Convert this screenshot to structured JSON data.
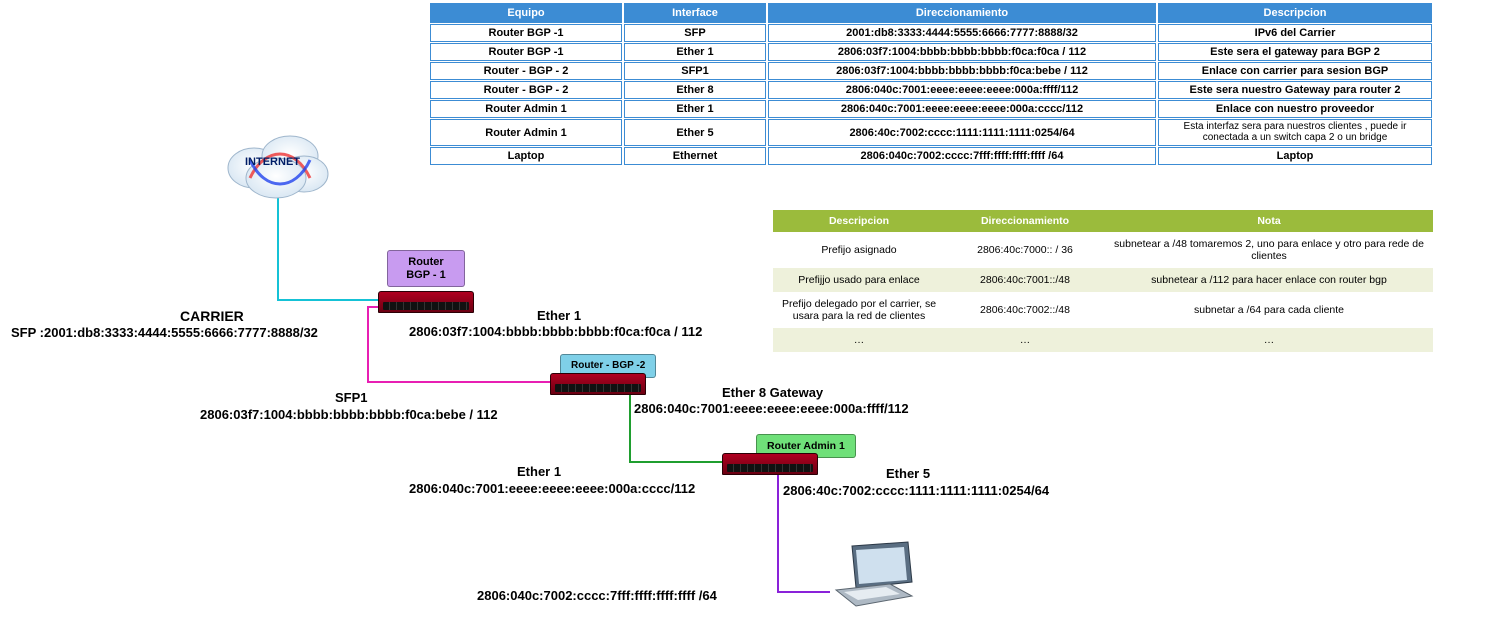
{
  "addr_table": {
    "header_bg": "#3c8cd4",
    "cell_border": "#3c8cd4",
    "headers": [
      "Equipo",
      "Interface",
      "Direccionamiento",
      "Descripcion"
    ],
    "rows": [
      [
        "Router BGP -1",
        "SFP",
        "2001:db8:3333:4444:5555:6666:7777:8888/32",
        "IPv6 del Carrier"
      ],
      [
        "Router BGP -1",
        "Ether 1",
        "2806:03f7:1004:bbbb:bbbb:bbbb:f0ca:f0ca / 112",
        "Este sera el gateway para BGP 2"
      ],
      [
        "Router - BGP - 2",
        "SFP1",
        "2806:03f7:1004:bbbb:bbbb:bbbb:f0ca:bebe / 112",
        "Enlace con carrier para sesion BGP"
      ],
      [
        "Router - BGP - 2",
        "Ether 8",
        "2806:040c:7001:eeee:eeee:eeee:000a:ffff/112",
        "Este sera nuestro Gateway para router 2"
      ],
      [
        "Router Admin 1",
        "Ether 1",
        "2806:040c:7001:eeee:eeee:eeee:000a:cccc/112",
        "Enlace con nuestro proveedor"
      ],
      [
        "Router Admin 1",
        "Ether 5",
        "2806:40c:7002:cccc:1111:1111:1111:0254/64",
        "Esta interfaz sera para nuestros clientes , puede ir conectada a un switch capa 2 o un bridge"
      ],
      [
        "Laptop",
        "Ethernet",
        "2806:040c:7002:cccc:7fff:ffff:ffff:ffff /64",
        "Laptop"
      ]
    ]
  },
  "prefix_table": {
    "header_bg": "#9bbb3c",
    "row_even_bg": "#eef1db",
    "row_odd_bg": "#ffffff",
    "headers": [
      "Descripcion",
      "Direccionamiento",
      "Nota"
    ],
    "rows": [
      [
        "Prefijo asignado",
        "2806:40c:7000:: / 36",
        "subnetear a /48  tomaremos 2, uno para enlace y otro para rede de clientes"
      ],
      [
        "Prefijjo usado para enlace",
        "2806:40c:7001::/48",
        "subnetear a /112 para hacer enlace con router bgp"
      ],
      [
        "Prefijo delegado por el carrier, se usara para la red de clientes",
        "2806:40c:7002::/48",
        "subnetar a /64 para cada cliente"
      ],
      [
        "…",
        "…",
        "…"
      ]
    ]
  },
  "labels": {
    "internet": "INTERNET",
    "carrier_title": "CARRIER",
    "carrier_sfp": "SFP :2001:db8:3333:4444:5555:6666:7777:8888/32",
    "bgp1": "Router BGP - 1",
    "bgp1_eth1_t": "Ether 1",
    "bgp1_eth1_a": "2806:03f7:1004:bbbb:bbbb:bbbb:f0ca:f0ca / 112",
    "sfp1_t": "SFP1",
    "sfp1_a": "2806:03f7:1004:bbbb:bbbb:bbbb:f0ca:bebe / 112",
    "bgp2": "Router - BGP -2",
    "eth8_t": "Ether 8 Gateway",
    "eth8_a": "2806:040c:7001:eeee:eeee:eeee:000a:ffff/112",
    "admin_eth1_t": "Ether 1",
    "admin_eth1_a": "2806:040c:7001:eeee:eeee:eeee:000a:cccc/112",
    "admin": "Router Admin 1",
    "eth5_t": "Ether 5",
    "eth5_a": "2806:40c:7002:cccc:1111:1111:1111:0254/64",
    "laptop_a": "2806:040c:7002:cccc:7fff:ffff:ffff:ffff /64"
  },
  "colors": {
    "bgp1_label_bg": "#c89bf0",
    "bgp2_label_bg": "#7fd0e8",
    "admin_label_bg": "#6fe079",
    "cyan": "#15c2d6",
    "magenta": "#e81fb3",
    "green": "#1f9e2f",
    "purple": "#8a22d9"
  }
}
